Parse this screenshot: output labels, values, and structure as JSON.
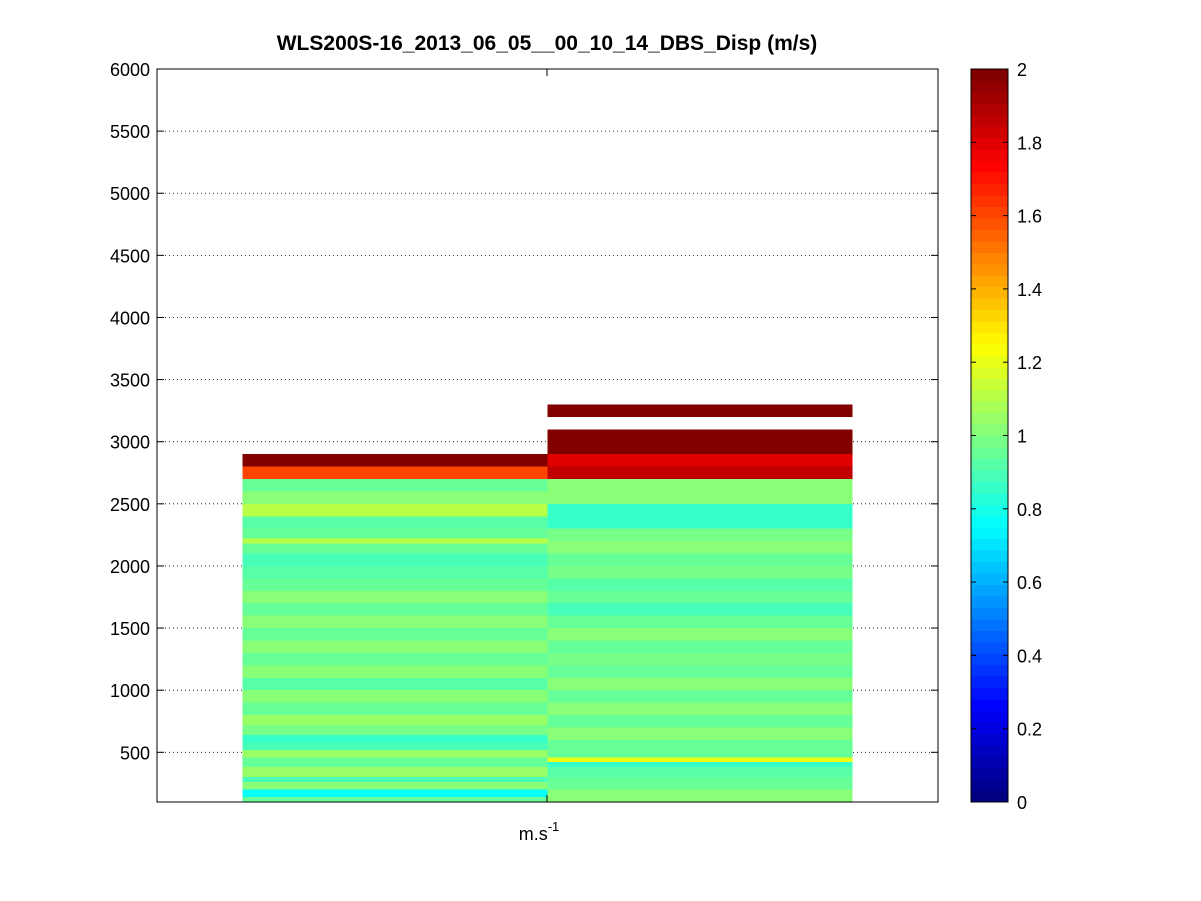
{
  "chart_data": {
    "type": "heatmap",
    "title": "WLS200S-16_2013_06_05__00_10_14_DBS_Disp (m/s)",
    "xlabel": "m.s",
    "xlabel_superscript": "-1",
    "ylabel": "",
    "ylim": [
      100,
      6000
    ],
    "yticks": [
      500,
      1000,
      1500,
      2000,
      2500,
      3000,
      3500,
      4000,
      4500,
      5000,
      5500,
      6000
    ],
    "grid": "y-dotted",
    "colormap": "jet",
    "clim": [
      0,
      2
    ],
    "colorbar_ticks": [
      0,
      0.2,
      0.4,
      0.6,
      0.8,
      1,
      1.2,
      1.4,
      1.6,
      1.8,
      2
    ],
    "colorbar_tick_labels": [
      "0",
      "0.2",
      "0.4",
      "0.6",
      "0.8",
      "1",
      "1.2",
      "1.4",
      "1.6",
      "1.8",
      "2"
    ],
    "columns": [
      {
        "segments": [
          {
            "from": 100,
            "to": 140,
            "value": 0.95
          },
          {
            "from": 140,
            "to": 200,
            "value": 0.78
          },
          {
            "from": 200,
            "to": 260,
            "value": 1.0
          },
          {
            "from": 260,
            "to": 300,
            "value": 0.9
          },
          {
            "from": 300,
            "to": 380,
            "value": 1.05
          },
          {
            "from": 380,
            "to": 460,
            "value": 0.95
          },
          {
            "from": 460,
            "to": 520,
            "value": 1.05
          },
          {
            "from": 520,
            "to": 580,
            "value": 0.9
          },
          {
            "from": 580,
            "to": 640,
            "value": 0.85
          },
          {
            "from": 640,
            "to": 720,
            "value": 0.98
          },
          {
            "from": 720,
            "to": 800,
            "value": 1.05
          },
          {
            "from": 800,
            "to": 900,
            "value": 0.95
          },
          {
            "from": 900,
            "to": 1000,
            "value": 1.0
          },
          {
            "from": 1000,
            "to": 1100,
            "value": 0.92
          },
          {
            "from": 1100,
            "to": 1200,
            "value": 1.0
          },
          {
            "from": 1200,
            "to": 1300,
            "value": 0.95
          },
          {
            "from": 1300,
            "to": 1400,
            "value": 1.0
          },
          {
            "from": 1400,
            "to": 1500,
            "value": 0.95
          },
          {
            "from": 1500,
            "to": 1600,
            "value": 1.0
          },
          {
            "from": 1600,
            "to": 1700,
            "value": 0.95
          },
          {
            "from": 1700,
            "to": 1800,
            "value": 1.0
          },
          {
            "from": 1800,
            "to": 1900,
            "value": 0.95
          },
          {
            "from": 1900,
            "to": 2000,
            "value": 0.93
          },
          {
            "from": 2000,
            "to": 2100,
            "value": 0.9
          },
          {
            "from": 2100,
            "to": 2180,
            "value": 0.95
          },
          {
            "from": 2180,
            "to": 2220,
            "value": 1.1
          },
          {
            "from": 2220,
            "to": 2300,
            "value": 0.95
          },
          {
            "from": 2300,
            "to": 2400,
            "value": 0.93
          },
          {
            "from": 2400,
            "to": 2500,
            "value": 1.1
          },
          {
            "from": 2500,
            "to": 2600,
            "value": 1.0
          },
          {
            "from": 2600,
            "to": 2700,
            "value": 0.95
          },
          {
            "from": 2700,
            "to": 2800,
            "value": 1.6
          },
          {
            "from": 2800,
            "to": 2900,
            "value": 2.0
          }
        ]
      },
      {
        "segments": [
          {
            "from": 100,
            "to": 200,
            "value": 1.0
          },
          {
            "from": 200,
            "to": 300,
            "value": 0.95
          },
          {
            "from": 300,
            "to": 380,
            "value": 0.92
          },
          {
            "from": 380,
            "to": 420,
            "value": 0.85
          },
          {
            "from": 420,
            "to": 460,
            "value": 1.2
          },
          {
            "from": 460,
            "to": 600,
            "value": 0.95
          },
          {
            "from": 600,
            "to": 700,
            "value": 1.0
          },
          {
            "from": 700,
            "to": 800,
            "value": 0.95
          },
          {
            "from": 800,
            "to": 900,
            "value": 1.0
          },
          {
            "from": 900,
            "to": 1000,
            "value": 0.95
          },
          {
            "from": 1000,
            "to": 1100,
            "value": 1.0
          },
          {
            "from": 1100,
            "to": 1200,
            "value": 0.95
          },
          {
            "from": 1200,
            "to": 1300,
            "value": 0.98
          },
          {
            "from": 1300,
            "to": 1400,
            "value": 0.95
          },
          {
            "from": 1400,
            "to": 1500,
            "value": 1.0
          },
          {
            "from": 1500,
            "to": 1600,
            "value": 0.95
          },
          {
            "from": 1600,
            "to": 1700,
            "value": 0.9
          },
          {
            "from": 1700,
            "to": 1800,
            "value": 0.95
          },
          {
            "from": 1800,
            "to": 1900,
            "value": 0.92
          },
          {
            "from": 1900,
            "to": 2000,
            "value": 0.97
          },
          {
            "from": 2000,
            "to": 2100,
            "value": 0.95
          },
          {
            "from": 2100,
            "to": 2200,
            "value": 1.0
          },
          {
            "from": 2200,
            "to": 2300,
            "value": 0.98
          },
          {
            "from": 2300,
            "to": 2500,
            "value": 0.86
          },
          {
            "from": 2500,
            "to": 2700,
            "value": 1.0
          },
          {
            "from": 2700,
            "to": 2800,
            "value": 1.85
          },
          {
            "from": 2800,
            "to": 2900,
            "value": 1.8
          },
          {
            "from": 2900,
            "to": 3100,
            "value": 2.0
          },
          {
            "from": 3200,
            "to": 3300,
            "value": 2.0
          }
        ]
      }
    ]
  }
}
